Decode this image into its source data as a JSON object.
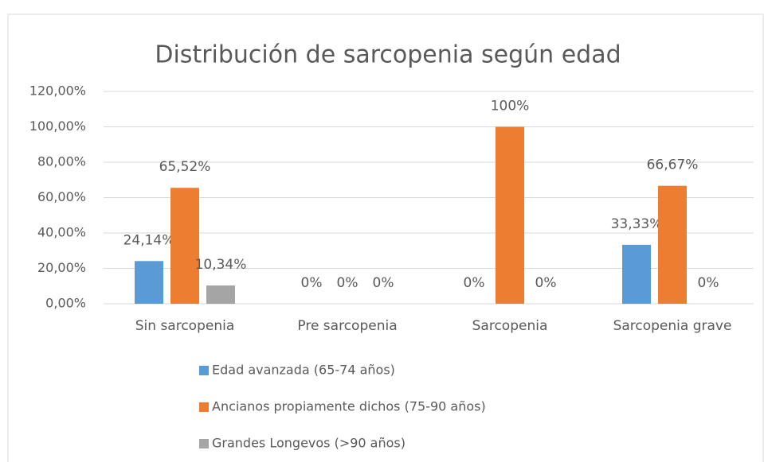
{
  "chart_data": {
    "type": "bar",
    "title": "Distribución de sarcopenia según edad",
    "categories": [
      "Sin sarcopenia",
      "Pre sarcopenia",
      "Sarcopenia",
      "Sarcopenia grave"
    ],
    "series": [
      {
        "name": "Edad avanzada (65-74 años)",
        "color": "#5b9bd5",
        "values": [
          24.14,
          0,
          0,
          33.33
        ],
        "value_labels": [
          "24,14%",
          "0%",
          "0%",
          "33,33%"
        ]
      },
      {
        "name": "Ancianos propiamente dichos (75-90 años)",
        "color": "#ed7d31",
        "values": [
          65.52,
          0,
          100,
          66.67
        ],
        "value_labels": [
          "65,52%",
          "0%",
          "100%",
          "66,67%"
        ]
      },
      {
        "name": "Grandes Longevos (>90 años)",
        "color": "#a5a5a5",
        "values": [
          10.34,
          0,
          0,
          0
        ],
        "value_labels": [
          "10,34%",
          "0%",
          "0%",
          "0%"
        ]
      }
    ],
    "ylim": [
      0,
      120
    ],
    "yticks": [
      {
        "value": 0,
        "label": "0,00%"
      },
      {
        "value": 20,
        "label": "20,00%"
      },
      {
        "value": 40,
        "label": "40,00%"
      },
      {
        "value": 60,
        "label": "60,00%"
      },
      {
        "value": 80,
        "label": "80,00%"
      },
      {
        "value": 100,
        "label": "100,00%"
      },
      {
        "value": 120,
        "label": "120,00%"
      }
    ],
    "grid": true,
    "legend": "bottom"
  }
}
